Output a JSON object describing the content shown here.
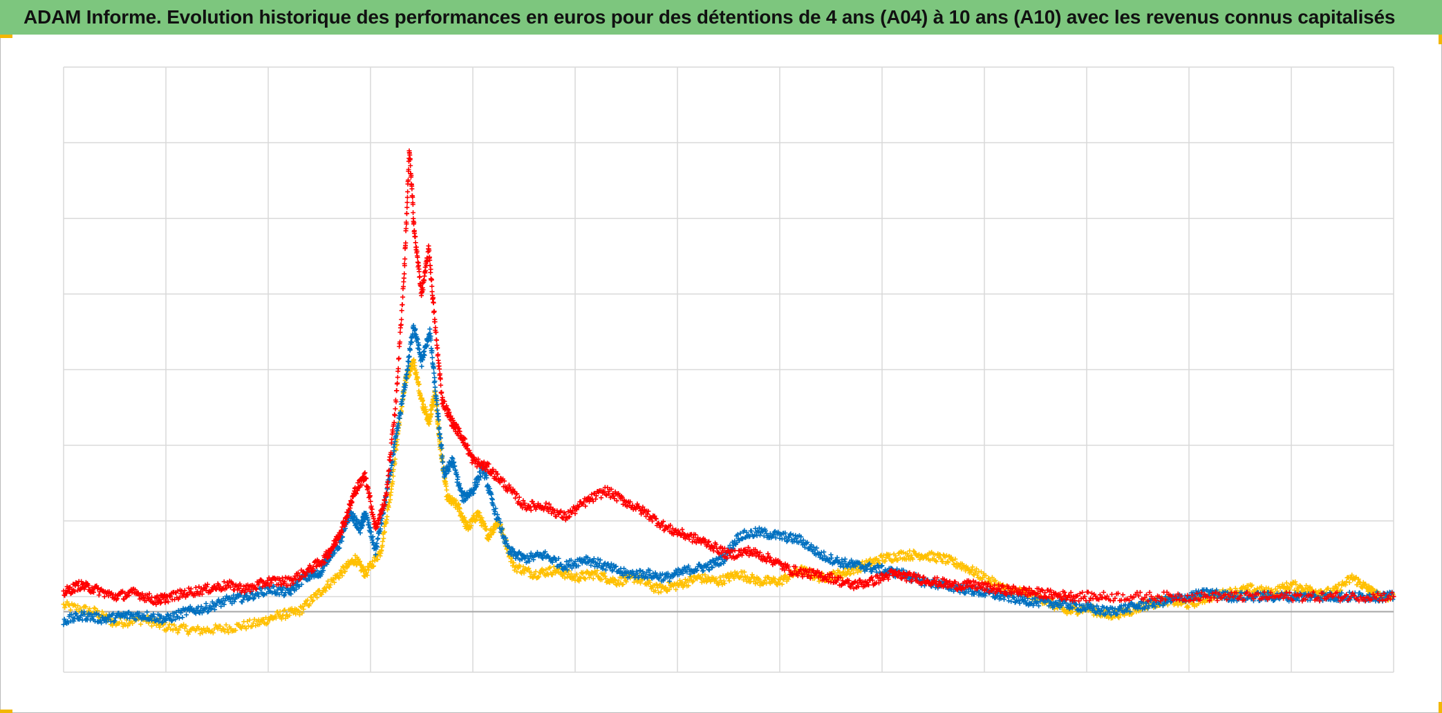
{
  "title": "ADAM Informe. Evolution historique des performances en euros pour des détentions de 4 ans (A04) à 10 ans (A10) avec les revenus connus capitalisés",
  "colors": {
    "title_background": "#7dc67e",
    "corner_accent": "#f2b705",
    "gridline": "#d9d9d9",
    "zero_line": "#a6a6a6"
  },
  "chart_data": {
    "type": "scatter",
    "title": "",
    "xlabel": "",
    "ylabel": "",
    "tick_labels_visible": false,
    "legend": "none",
    "grid": true,
    "xlim": [
      0,
      13
    ],
    "ylim": [
      -0.8,
      7.2
    ],
    "x_gridlines": 13,
    "y_gridlines": 8,
    "zero_line_y": 0,
    "marker": "plus",
    "series": [
      {
        "color": "#ffc000",
        "points": [
          [
            0.0,
            0.08
          ],
          [
            0.3,
            0.0
          ],
          [
            0.5,
            -0.15
          ],
          [
            0.8,
            -0.1
          ],
          [
            1.0,
            -0.2
          ],
          [
            1.3,
            -0.25
          ],
          [
            1.6,
            -0.22
          ],
          [
            1.9,
            -0.15
          ],
          [
            2.1,
            -0.05
          ],
          [
            2.3,
            0.0
          ],
          [
            2.5,
            0.25
          ],
          [
            2.7,
            0.5
          ],
          [
            2.85,
            0.7
          ],
          [
            2.95,
            0.5
          ],
          [
            3.1,
            0.8
          ],
          [
            3.2,
            1.6
          ],
          [
            3.28,
            2.5
          ],
          [
            3.35,
            3.1
          ],
          [
            3.42,
            3.3
          ],
          [
            3.5,
            2.8
          ],
          [
            3.57,
            2.5
          ],
          [
            3.63,
            2.9
          ],
          [
            3.68,
            2.2
          ],
          [
            3.75,
            1.5
          ],
          [
            3.85,
            1.4
          ],
          [
            3.95,
            1.1
          ],
          [
            4.05,
            1.3
          ],
          [
            4.15,
            1.0
          ],
          [
            4.25,
            1.2
          ],
          [
            4.4,
            0.6
          ],
          [
            4.6,
            0.5
          ],
          [
            4.8,
            0.55
          ],
          [
            5.0,
            0.45
          ],
          [
            5.2,
            0.5
          ],
          [
            5.4,
            0.4
          ],
          [
            5.6,
            0.45
          ],
          [
            5.8,
            0.3
          ],
          [
            6.0,
            0.35
          ],
          [
            6.2,
            0.45
          ],
          [
            6.4,
            0.4
          ],
          [
            6.6,
            0.5
          ],
          [
            6.8,
            0.4
          ],
          [
            7.0,
            0.4
          ],
          [
            7.2,
            0.55
          ],
          [
            7.4,
            0.45
          ],
          [
            7.6,
            0.5
          ],
          [
            7.8,
            0.6
          ],
          [
            8.0,
            0.7
          ],
          [
            8.2,
            0.75
          ],
          [
            8.4,
            0.75
          ],
          [
            8.6,
            0.7
          ],
          [
            8.8,
            0.6
          ],
          [
            9.0,
            0.45
          ],
          [
            9.2,
            0.3
          ],
          [
            9.4,
            0.25
          ],
          [
            9.6,
            0.15
          ],
          [
            9.8,
            0.0
          ],
          [
            10.0,
            0.05
          ],
          [
            10.2,
            -0.05
          ],
          [
            10.4,
            0.0
          ],
          [
            10.6,
            0.1
          ],
          [
            10.8,
            0.15
          ],
          [
            11.0,
            0.1
          ],
          [
            11.2,
            0.2
          ],
          [
            11.4,
            0.25
          ],
          [
            11.6,
            0.3
          ],
          [
            11.8,
            0.25
          ],
          [
            12.0,
            0.35
          ],
          [
            12.2,
            0.28
          ],
          [
            12.4,
            0.25
          ],
          [
            12.6,
            0.45
          ],
          [
            12.75,
            0.3
          ],
          [
            12.85,
            0.2
          ],
          [
            13.0,
            0.2
          ]
        ]
      },
      {
        "color": "#0070c0",
        "points": [
          [
            0.0,
            -0.12
          ],
          [
            0.2,
            -0.05
          ],
          [
            0.4,
            -0.1
          ],
          [
            0.6,
            -0.05
          ],
          [
            0.8,
            -0.05
          ],
          [
            1.0,
            -0.1
          ],
          [
            1.2,
            0.0
          ],
          [
            1.4,
            0.05
          ],
          [
            1.6,
            0.15
          ],
          [
            1.8,
            0.2
          ],
          [
            2.0,
            0.3
          ],
          [
            2.2,
            0.25
          ],
          [
            2.35,
            0.45
          ],
          [
            2.5,
            0.5
          ],
          [
            2.6,
            0.75
          ],
          [
            2.7,
            0.9
          ],
          [
            2.8,
            1.3
          ],
          [
            2.9,
            1.1
          ],
          [
            2.95,
            1.3
          ],
          [
            3.05,
            0.8
          ],
          [
            3.15,
            1.5
          ],
          [
            3.25,
            2.3
          ],
          [
            3.35,
            3.1
          ],
          [
            3.42,
            3.8
          ],
          [
            3.5,
            3.3
          ],
          [
            3.58,
            3.7
          ],
          [
            3.65,
            2.7
          ],
          [
            3.72,
            1.8
          ],
          [
            3.8,
            2.0
          ],
          [
            3.9,
            1.5
          ],
          [
            4.0,
            1.6
          ],
          [
            4.1,
            1.9
          ],
          [
            4.2,
            1.4
          ],
          [
            4.35,
            0.8
          ],
          [
            4.5,
            0.7
          ],
          [
            4.7,
            0.75
          ],
          [
            4.9,
            0.6
          ],
          [
            5.1,
            0.7
          ],
          [
            5.3,
            0.6
          ],
          [
            5.5,
            0.5
          ],
          [
            5.7,
            0.5
          ],
          [
            5.9,
            0.45
          ],
          [
            6.1,
            0.55
          ],
          [
            6.3,
            0.6
          ],
          [
            6.45,
            0.7
          ],
          [
            6.6,
            1.0
          ],
          [
            6.8,
            1.05
          ],
          [
            7.0,
            1.0
          ],
          [
            7.2,
            0.95
          ],
          [
            7.4,
            0.75
          ],
          [
            7.6,
            0.65
          ],
          [
            7.8,
            0.6
          ],
          [
            8.0,
            0.55
          ],
          [
            8.2,
            0.5
          ],
          [
            8.4,
            0.4
          ],
          [
            8.6,
            0.35
          ],
          [
            8.8,
            0.3
          ],
          [
            9.0,
            0.25
          ],
          [
            9.2,
            0.2
          ],
          [
            9.4,
            0.15
          ],
          [
            9.6,
            0.12
          ],
          [
            9.8,
            0.1
          ],
          [
            10.0,
            0.05
          ],
          [
            10.2,
            0.0
          ],
          [
            10.4,
            0.05
          ],
          [
            10.6,
            0.1
          ],
          [
            10.8,
            0.15
          ],
          [
            11.0,
            0.2
          ],
          [
            11.2,
            0.25
          ],
          [
            11.4,
            0.2
          ],
          [
            11.6,
            0.2
          ],
          [
            11.8,
            0.2
          ],
          [
            12.0,
            0.2
          ],
          [
            12.2,
            0.2
          ],
          [
            12.4,
            0.2
          ],
          [
            12.6,
            0.2
          ],
          [
            12.8,
            0.2
          ],
          [
            13.0,
            0.2
          ]
        ]
      },
      {
        "color": "#ff0000",
        "points": [
          [
            0.0,
            0.25
          ],
          [
            0.15,
            0.35
          ],
          [
            0.3,
            0.3
          ],
          [
            0.5,
            0.2
          ],
          [
            0.7,
            0.25
          ],
          [
            0.9,
            0.15
          ],
          [
            1.0,
            0.18
          ],
          [
            1.2,
            0.25
          ],
          [
            1.4,
            0.3
          ],
          [
            1.6,
            0.35
          ],
          [
            1.8,
            0.3
          ],
          [
            2.0,
            0.4
          ],
          [
            2.2,
            0.4
          ],
          [
            2.4,
            0.55
          ],
          [
            2.55,
            0.7
          ],
          [
            2.65,
            0.9
          ],
          [
            2.75,
            1.2
          ],
          [
            2.85,
            1.6
          ],
          [
            2.95,
            1.8
          ],
          [
            3.05,
            1.1
          ],
          [
            3.15,
            1.5
          ],
          [
            3.25,
            2.8
          ],
          [
            3.33,
            4.5
          ],
          [
            3.38,
            6.1
          ],
          [
            3.43,
            5.0
          ],
          [
            3.5,
            4.2
          ],
          [
            3.57,
            4.8
          ],
          [
            3.63,
            3.8
          ],
          [
            3.7,
            2.8
          ],
          [
            3.8,
            2.5
          ],
          [
            3.9,
            2.3
          ],
          [
            4.0,
            2.0
          ],
          [
            4.15,
            1.9
          ],
          [
            4.3,
            1.7
          ],
          [
            4.5,
            1.4
          ],
          [
            4.7,
            1.4
          ],
          [
            4.9,
            1.25
          ],
          [
            5.1,
            1.45
          ],
          [
            5.3,
            1.6
          ],
          [
            5.5,
            1.45
          ],
          [
            5.7,
            1.3
          ],
          [
            5.9,
            1.1
          ],
          [
            6.1,
            1.0
          ],
          [
            6.3,
            0.9
          ],
          [
            6.5,
            0.75
          ],
          [
            6.7,
            0.8
          ],
          [
            6.9,
            0.7
          ],
          [
            7.1,
            0.55
          ],
          [
            7.3,
            0.5
          ],
          [
            7.5,
            0.45
          ],
          [
            7.7,
            0.35
          ],
          [
            7.9,
            0.4
          ],
          [
            8.1,
            0.5
          ],
          [
            8.3,
            0.45
          ],
          [
            8.5,
            0.4
          ],
          [
            8.7,
            0.35
          ],
          [
            8.9,
            0.35
          ],
          [
            9.1,
            0.3
          ],
          [
            9.3,
            0.28
          ],
          [
            9.5,
            0.25
          ],
          [
            9.7,
            0.22
          ],
          [
            9.9,
            0.2
          ],
          [
            10.2,
            0.2
          ],
          [
            10.6,
            0.2
          ],
          [
            11.0,
            0.2
          ],
          [
            11.4,
            0.2
          ],
          [
            11.8,
            0.2
          ],
          [
            12.2,
            0.2
          ],
          [
            12.6,
            0.2
          ],
          [
            13.0,
            0.2
          ]
        ]
      }
    ]
  }
}
